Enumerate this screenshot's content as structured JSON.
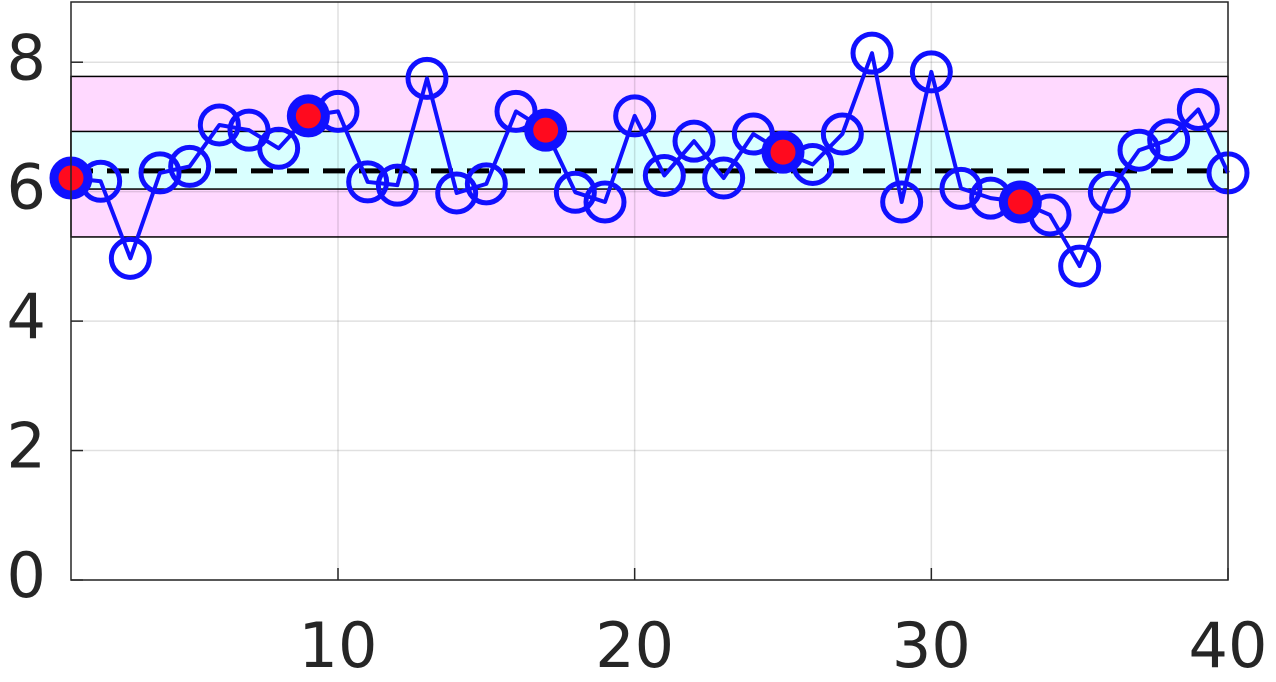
{
  "chart_data": {
    "type": "line",
    "x": [
      1,
      2,
      3,
      4,
      5,
      6,
      7,
      8,
      9,
      10,
      11,
      12,
      13,
      14,
      15,
      16,
      17,
      18,
      19,
      20,
      21,
      22,
      23,
      24,
      25,
      26,
      27,
      28,
      29,
      30,
      31,
      32,
      33,
      34,
      35,
      36,
      37,
      38,
      39,
      40
    ],
    "series": [
      {
        "color": "#1010ff",
        "values": [
          6.21,
          6.16,
          4.97,
          6.29,
          6.39,
          7.03,
          6.95,
          6.67,
          7.17,
          7.24,
          6.15,
          6.1,
          7.75,
          5.98,
          6.12,
          7.24,
          6.95,
          5.99,
          5.84,
          7.17,
          6.25,
          6.78,
          6.21,
          6.89,
          6.61,
          6.42,
          6.89,
          8.14,
          5.84,
          7.85,
          6.05,
          5.9,
          5.84,
          5.64,
          4.85,
          5.99,
          6.64,
          6.8,
          7.27,
          6.29
        ]
      }
    ],
    "highlight": {
      "color": "#ff0a1e",
      "x": [
        1,
        9,
        17,
        25,
        33
      ],
      "values": [
        6.21,
        7.17,
        6.95,
        6.61,
        5.84
      ]
    },
    "bands": [
      {
        "lower": 5.3,
        "upper": 7.78,
        "color": "#ffd9ff"
      },
      {
        "lower": 6.04,
        "upper": 6.93,
        "color": "#d9ffff"
      }
    ],
    "center_line": 6.32,
    "xlim": [
      1,
      40
    ],
    "xticks": [
      10,
      20,
      30,
      40
    ],
    "ylim": [
      0,
      8.93
    ],
    "yticks": [
      0,
      2,
      4,
      6,
      8
    ],
    "grid": true
  }
}
